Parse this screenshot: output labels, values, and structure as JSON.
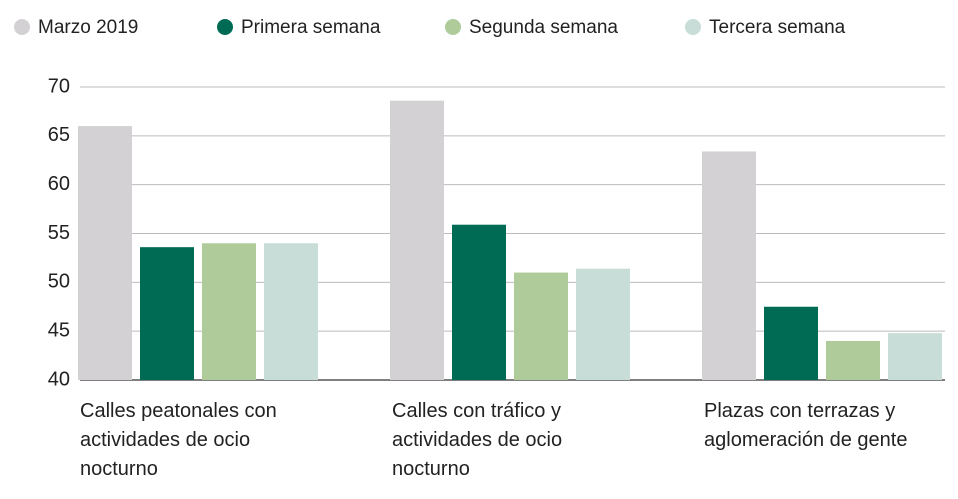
{
  "chart_data": {
    "type": "bar",
    "categories": [
      "Calles peatonales con actividades de ocio nocturno",
      "Calles con tráfico y actividades de ocio nocturno",
      "Plazas con terrazas y aglomeración de gente"
    ],
    "series": [
      {
        "name": "Marzo 2019",
        "color": "#d4d1d4",
        "values": [
          66.0,
          68.6,
          63.4
        ]
      },
      {
        "name": "Primera semana",
        "color": "#006b54",
        "values": [
          53.6,
          55.9,
          47.5
        ]
      },
      {
        "name": "Segunda semana",
        "color": "#aecb99",
        "values": [
          54.0,
          51.0,
          44.0
        ]
      },
      {
        "name": "Tercera semana",
        "color": "#c9ddd8",
        "values": [
          54.0,
          51.4,
          44.8
        ]
      }
    ],
    "ylim": [
      40,
      70
    ],
    "yticks": [
      40,
      45,
      50,
      55,
      60,
      65,
      70
    ],
    "grid": true
  }
}
